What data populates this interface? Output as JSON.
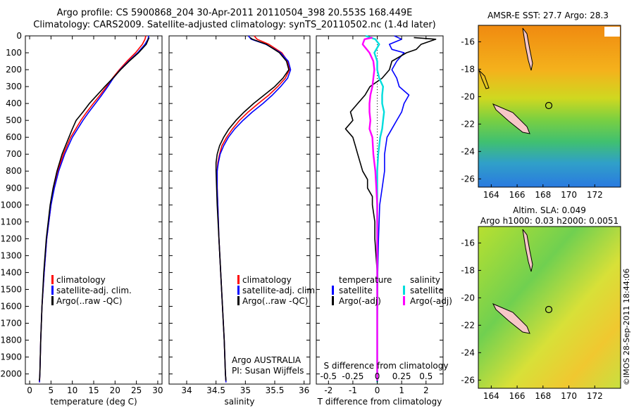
{
  "header": {
    "line1": "Argo profile: CS 5900868_204 30-Apr-2011 20110504_398 20.553S 168.449E",
    "line2": "Climatology: CARS2009. Satellite-adjusted climatology: synTS_20110502.nc (1.4d later)"
  },
  "side_label": "©IMOS 28-Sep-2011 18:44:06",
  "colors": {
    "climatology": "#ff0000",
    "satellite": "#0000ff",
    "argo": "#000000",
    "sal_sat": "#00dddd",
    "sal_argo": "#ff00ff"
  },
  "chart_data": [
    {
      "type": "line",
      "id": "temperature",
      "xlabel": "temperature (deg C)",
      "ylabel": "",
      "xlim": [
        -1,
        31
      ],
      "ylim": [
        2060,
        0
      ],
      "xticks": [
        0,
        5,
        10,
        15,
        20,
        25,
        30
      ],
      "yticks": [
        0,
        100,
        200,
        300,
        400,
        500,
        600,
        700,
        800,
        900,
        1000,
        1100,
        1200,
        1300,
        1400,
        1500,
        1600,
        1700,
        1800,
        1900,
        2000
      ],
      "legend": [
        "climatology",
        "satellite-adj. clim.",
        "Argo(..raw -QC)"
      ],
      "series": [
        {
          "name": "climatology",
          "color": "#ff0000",
          "depth": [
            0,
            20,
            50,
            100,
            150,
            200,
            250,
            300,
            350,
            400,
            450,
            500,
            600,
            700,
            800,
            900,
            1000,
            1200,
            1400,
            1600,
            1800,
            2000,
            2050
          ],
          "values": [
            27.2,
            27.0,
            26.4,
            24.8,
            22.8,
            21.0,
            19.4,
            18.0,
            16.5,
            14.9,
            13.4,
            12.0,
            9.6,
            7.9,
            6.6,
            5.7,
            5.0,
            4.0,
            3.4,
            2.9,
            2.6,
            2.4,
            2.3
          ]
        },
        {
          "name": "satellite-adj. clim.",
          "color": "#0000ff",
          "depth": [
            0,
            20,
            50,
            100,
            150,
            200,
            250,
            300,
            350,
            400,
            450,
            500,
            600,
            700,
            800,
            900,
            1000,
            1200,
            1400,
            1600,
            1800,
            2000,
            2050
          ],
          "values": [
            27.9,
            27.7,
            27.0,
            25.3,
            23.2,
            21.2,
            19.6,
            18.3,
            16.9,
            15.4,
            13.9,
            12.5,
            10.0,
            8.2,
            6.8,
            5.8,
            5.0,
            4.0,
            3.4,
            2.9,
            2.6,
            2.4,
            2.3
          ]
        },
        {
          "name": "Argo(..raw -QC)",
          "color": "#000000",
          "depth": [
            10,
            20,
            50,
            100,
            150,
            200,
            250,
            300,
            350,
            400,
            450,
            500,
            550,
            600,
            700,
            800,
            900,
            1000,
            1200,
            1400,
            1600,
            1800,
            2000,
            2040
          ],
          "values": [
            28.0,
            27.8,
            27.3,
            25.5,
            23.3,
            21.3,
            19.5,
            17.6,
            15.8,
            14.0,
            12.5,
            10.9,
            10.0,
            9.2,
            7.6,
            6.4,
            5.5,
            4.8,
            3.9,
            3.3,
            2.9,
            2.6,
            2.4,
            2.3
          ]
        }
      ]
    },
    {
      "type": "line",
      "id": "salinity",
      "xlabel": "salinity",
      "ylabel": "",
      "xlim": [
        33.7,
        36.1
      ],
      "ylim": [
        2060,
        0
      ],
      "xticks": [
        34,
        34.5,
        35,
        35.5,
        36
      ],
      "legend": [
        "climatology",
        "satellite-adj. clim.",
        "Argo(..raw -QC)"
      ],
      "notes": [
        "Argo AUSTRALIA",
        "PI: Susan Wijffels"
      ],
      "series": [
        {
          "name": "climatology",
          "color": "#ff0000",
          "depth": [
            0,
            20,
            50,
            100,
            150,
            200,
            250,
            300,
            350,
            400,
            450,
            500,
            550,
            600,
            650,
            700,
            750,
            800,
            900,
            1000,
            1200,
            1400,
            1600,
            1800,
            2000,
            2050
          ],
          "values": [
            35.15,
            35.2,
            35.4,
            35.62,
            35.72,
            35.75,
            35.68,
            35.55,
            35.4,
            35.22,
            35.05,
            34.9,
            34.78,
            34.68,
            34.6,
            34.56,
            34.53,
            34.52,
            34.52,
            34.53,
            34.55,
            34.58,
            34.61,
            34.64,
            34.66,
            34.67
          ]
        },
        {
          "name": "satellite-adj. clim.",
          "color": "#0000ff",
          "depth": [
            0,
            20,
            50,
            100,
            150,
            200,
            250,
            300,
            350,
            400,
            450,
            500,
            550,
            600,
            650,
            700,
            750,
            800,
            900,
            1000,
            1200,
            1400,
            1600,
            1800,
            2000,
            2050
          ],
          "values": [
            35.05,
            35.1,
            35.35,
            35.6,
            35.73,
            35.77,
            35.72,
            35.6,
            35.46,
            35.3,
            35.12,
            34.96,
            34.82,
            34.71,
            34.63,
            34.57,
            34.54,
            34.52,
            34.52,
            34.53,
            34.55,
            34.58,
            34.61,
            34.64,
            34.66,
            34.67
          ]
        },
        {
          "name": "Argo(..raw -QC)",
          "color": "#000000",
          "depth": [
            10,
            20,
            50,
            100,
            150,
            200,
            250,
            300,
            350,
            400,
            450,
            500,
            550,
            600,
            650,
            700,
            750,
            800,
            900,
            1000,
            1200,
            1400,
            1600,
            1800,
            2000,
            2040
          ],
          "values": [
            35.08,
            35.12,
            35.36,
            35.58,
            35.7,
            35.74,
            35.64,
            35.5,
            35.32,
            35.14,
            34.98,
            34.84,
            34.72,
            34.63,
            34.56,
            34.52,
            34.5,
            34.5,
            34.51,
            34.52,
            34.55,
            34.58,
            34.61,
            34.64,
            34.66,
            34.67
          ]
        }
      ]
    },
    {
      "type": "line",
      "id": "differences",
      "xlabel": "T difference from climatology",
      "xlabel_top": "S difference from climatology",
      "xlim": [
        -2.5,
        2.7
      ],
      "xticks": [
        -2,
        -1,
        0,
        1,
        2
      ],
      "s_ticks": [
        -0.5,
        -0.25,
        0,
        0.25,
        0.5
      ],
      "legend_t": {
        "title": "temperature",
        "entries": [
          "satellite",
          "Argo(-adj)"
        ]
      },
      "legend_s": {
        "title": "salinity",
        "entries": [
          "satellite",
          "Argo(-adj)"
        ]
      },
      "series": [
        {
          "name": "temperature satellite",
          "color": "#0000ff",
          "depth": [
            0,
            20,
            50,
            80,
            100,
            150,
            200,
            250,
            300,
            350,
            400,
            450,
            500,
            550,
            600,
            700,
            800,
            900,
            1000,
            1200,
            1400,
            1600,
            1800,
            2000,
            2050
          ],
          "values": [
            0.7,
            1.0,
            0.5,
            0.6,
            1.1,
            0.8,
            0.6,
            0.8,
            0.9,
            1.3,
            1.1,
            1.0,
            0.8,
            0.6,
            0.4,
            0.3,
            0.3,
            0.2,
            0.1,
            0.05,
            0.02,
            0.01,
            0.0,
            0.0,
            0.0
          ]
        },
        {
          "name": "temperature Argo(-adj)",
          "color": "#000000",
          "depth": [
            10,
            20,
            50,
            80,
            100,
            150,
            200,
            250,
            300,
            350,
            400,
            450,
            500,
            550,
            600,
            650,
            700,
            750,
            800,
            850,
            900,
            950,
            1000,
            1100,
            1200,
            1400,
            1600,
            1800,
            2000,
            2040
          ],
          "values": [
            1.5,
            2.4,
            1.8,
            1.6,
            1.2,
            0.6,
            0.5,
            0.2,
            -0.3,
            -0.5,
            -0.8,
            -1.1,
            -1.0,
            -1.3,
            -1.0,
            -0.9,
            -0.8,
            -0.7,
            -0.6,
            -0.4,
            -0.4,
            -0.2,
            -0.2,
            -0.1,
            -0.1,
            0.0,
            0.0,
            0.0,
            0.0,
            0.0
          ]
        },
        {
          "name": "salinity satellite",
          "color": "#00dddd",
          "depth": [
            0,
            20,
            50,
            100,
            150,
            200,
            250,
            300,
            350,
            400,
            450,
            500,
            550,
            600,
            700,
            800,
            900,
            1000,
            1200,
            1400,
            1600,
            1800,
            2000,
            2050
          ],
          "values": [
            -0.12,
            -0.02,
            0.02,
            -0.03,
            0.0,
            0.0,
            0.02,
            0.06,
            0.05,
            0.05,
            0.07,
            0.06,
            0.05,
            0.03,
            0.01,
            0.0,
            0.0,
            0.0,
            0.0,
            0.0,
            0.0,
            0.0,
            0.0,
            0.0
          ]
        },
        {
          "name": "salinity Argo(-adj)",
          "color": "#ff00ff",
          "depth": [
            10,
            20,
            50,
            100,
            150,
            200,
            250,
            300,
            350,
            400,
            450,
            500,
            550,
            600,
            700,
            800,
            900,
            1000,
            1100,
            1200,
            1400,
            1600,
            1800,
            2000,
            2040
          ],
          "values": [
            -0.05,
            -0.13,
            -0.15,
            -0.08,
            -0.04,
            -0.03,
            -0.04,
            -0.05,
            -0.07,
            -0.08,
            -0.08,
            -0.07,
            -0.08,
            -0.05,
            -0.04,
            -0.02,
            -0.01,
            0.0,
            0.0,
            0.0,
            0.0,
            0.0,
            0.0,
            0.0,
            0.0
          ]
        }
      ]
    },
    {
      "type": "heatmap",
      "id": "sst_map",
      "title": "AMSR-E SST: 27.7 Argo: 28.3",
      "xticks": [
        164,
        166,
        168,
        170,
        172
      ],
      "yticks": [
        -16,
        -18,
        -20,
        -22,
        -24,
        -26
      ],
      "xlim": [
        163,
        174
      ],
      "ylim": [
        -26.6,
        -14.8
      ],
      "float_position": {
        "lon": 168.45,
        "lat": -20.55
      }
    },
    {
      "type": "heatmap",
      "id": "sla_map",
      "title": "Altim. SLA: 0.049",
      "subtitle": "Argo h1000: 0.03 h2000: 0.0051",
      "xticks": [
        164,
        166,
        168,
        170,
        172
      ],
      "yticks": [
        -16,
        -18,
        -20,
        -22,
        -24,
        -26
      ],
      "xlim": [
        163,
        174
      ],
      "ylim": [
        -26.6,
        -14.8
      ],
      "float_position": {
        "lon": 168.45,
        "lat": -20.55
      }
    }
  ]
}
